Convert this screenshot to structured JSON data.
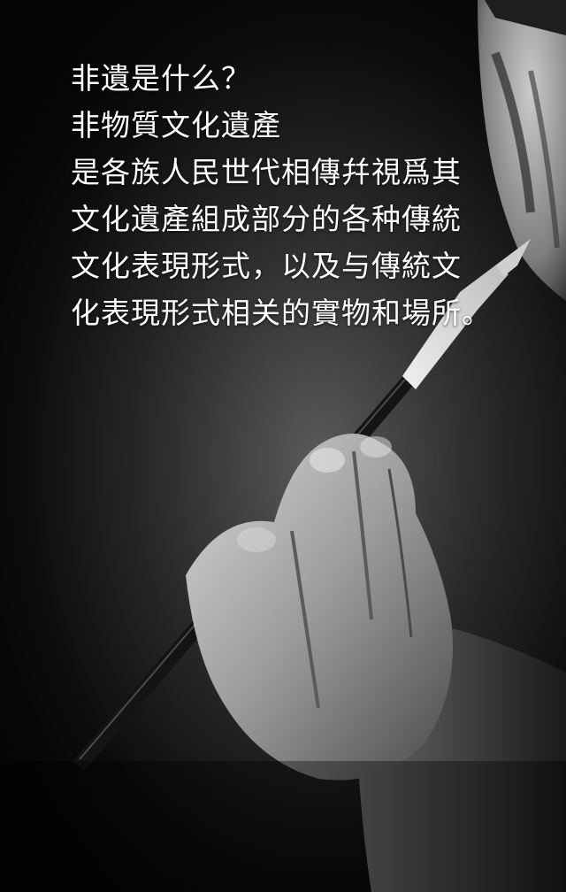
{
  "poster": {
    "heading": "非遺是什么？",
    "lines": [
      "非物質文化遺產",
      "是各族人民世代相傳幷視爲其",
      "文化遺產組成部分的各种傳統",
      "文化表現形式，以及与傳統文",
      "化表現形式相关的實物和場所。"
    ]
  },
  "colors": {
    "text": "#ffffff",
    "background": "#1a1a1a"
  }
}
